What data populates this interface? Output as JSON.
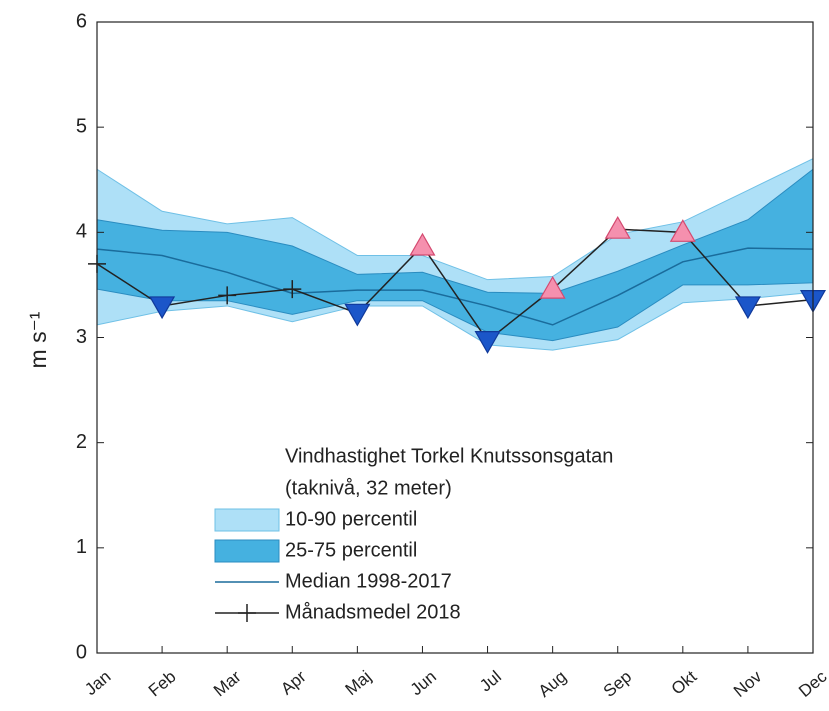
{
  "chart_data": {
    "type": "band-line",
    "ylabel": "m s⁻¹",
    "categories": [
      "Jan",
      "Feb",
      "Mar",
      "Apr",
      "Maj",
      "Jun",
      "Jul",
      "Aug",
      "Sep",
      "Okt",
      "Nov",
      "Dec"
    ],
    "ylim": [
      0,
      6
    ],
    "yticks": [
      0,
      1,
      2,
      3,
      4,
      5,
      6
    ],
    "legend_title": [
      "Vindhastighet Torkel Knutssonsgatan",
      "(taknivå, 32 meter)"
    ],
    "bands": [
      {
        "name": "10-90 percentil",
        "color": "#aee0f7",
        "edge": "#6fc0e6",
        "lower": [
          3.12,
          3.25,
          3.3,
          3.15,
          3.3,
          3.3,
          2.93,
          2.88,
          2.98,
          3.33,
          3.37,
          3.43
        ],
        "upper": [
          4.6,
          4.2,
          4.08,
          4.14,
          3.78,
          3.78,
          3.55,
          3.58,
          3.98,
          4.1,
          4.4,
          4.7
        ]
      },
      {
        "name": "25-75 percentil",
        "color": "#45b1e0",
        "edge": "#2a8cc0",
        "lower": [
          3.46,
          3.35,
          3.35,
          3.22,
          3.35,
          3.35,
          3.05,
          2.97,
          3.1,
          3.5,
          3.5,
          3.52
        ],
        "upper": [
          4.12,
          4.02,
          4.0,
          3.87,
          3.6,
          3.62,
          3.43,
          3.42,
          3.63,
          3.88,
          4.12,
          4.6
        ]
      }
    ],
    "series": [
      {
        "name": "Median 1998-2017",
        "color": "#1a6c9c",
        "values": [
          3.84,
          3.78,
          3.62,
          3.42,
          3.45,
          3.45,
          3.3,
          3.12,
          3.4,
          3.72,
          3.85,
          3.84
        ]
      },
      {
        "name": "Månadsmedel 2018",
        "color": "#222222",
        "values": [
          3.7,
          3.3,
          3.4,
          3.46,
          3.23,
          3.87,
          2.97,
          3.46,
          4.03,
          4.0,
          3.3,
          3.36
        ]
      }
    ]
  }
}
